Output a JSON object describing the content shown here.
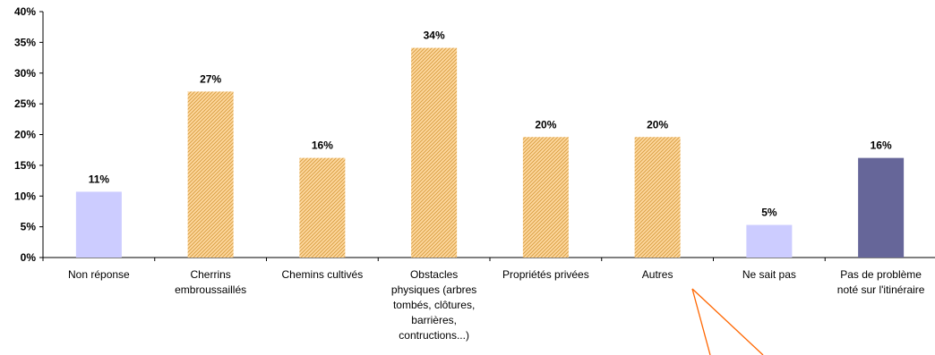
{
  "chart_data": {
    "type": "bar",
    "title": "",
    "xlabel": "",
    "ylabel": "",
    "ylim": [
      0,
      40
    ],
    "yticks": [
      "0%",
      "5%",
      "10%",
      "15%",
      "20%",
      "25%",
      "30%",
      "35%",
      "40%"
    ],
    "grid": false,
    "legend": "none",
    "categories": [
      [
        "Non réponse"
      ],
      [
        "Cherrins",
        "embroussaillés"
      ],
      [
        "Chemins cultivés"
      ],
      [
        "Obstacles",
        "physiques (arbres",
        "tombés, clôtures,",
        "barrières,",
        "contructions...)"
      ],
      [
        "Propriétés privées"
      ],
      [
        "Autres"
      ],
      [
        "Ne sait pas"
      ],
      [
        "Pas de problème",
        "noté sur l'itinéraire"
      ]
    ],
    "values": [
      10.7,
      27,
      16.2,
      34.1,
      19.6,
      19.6,
      5.3,
      16.2
    ],
    "data_labels": [
      "11%",
      "27%",
      "16%",
      "34%",
      "20%",
      "20%",
      "5%",
      "16%"
    ],
    "bar_styles": [
      "solid-light",
      "hatched",
      "hatched",
      "hatched",
      "hatched",
      "hatched",
      "solid-light",
      "solid-dark"
    ],
    "colors": {
      "solid_light": "#ccccff",
      "solid_dark": "#666699",
      "hatch_fill": "#ffd9a0",
      "hatch_line": "#d9a046",
      "axis": "#000000",
      "callout": "#ff6600"
    }
  }
}
